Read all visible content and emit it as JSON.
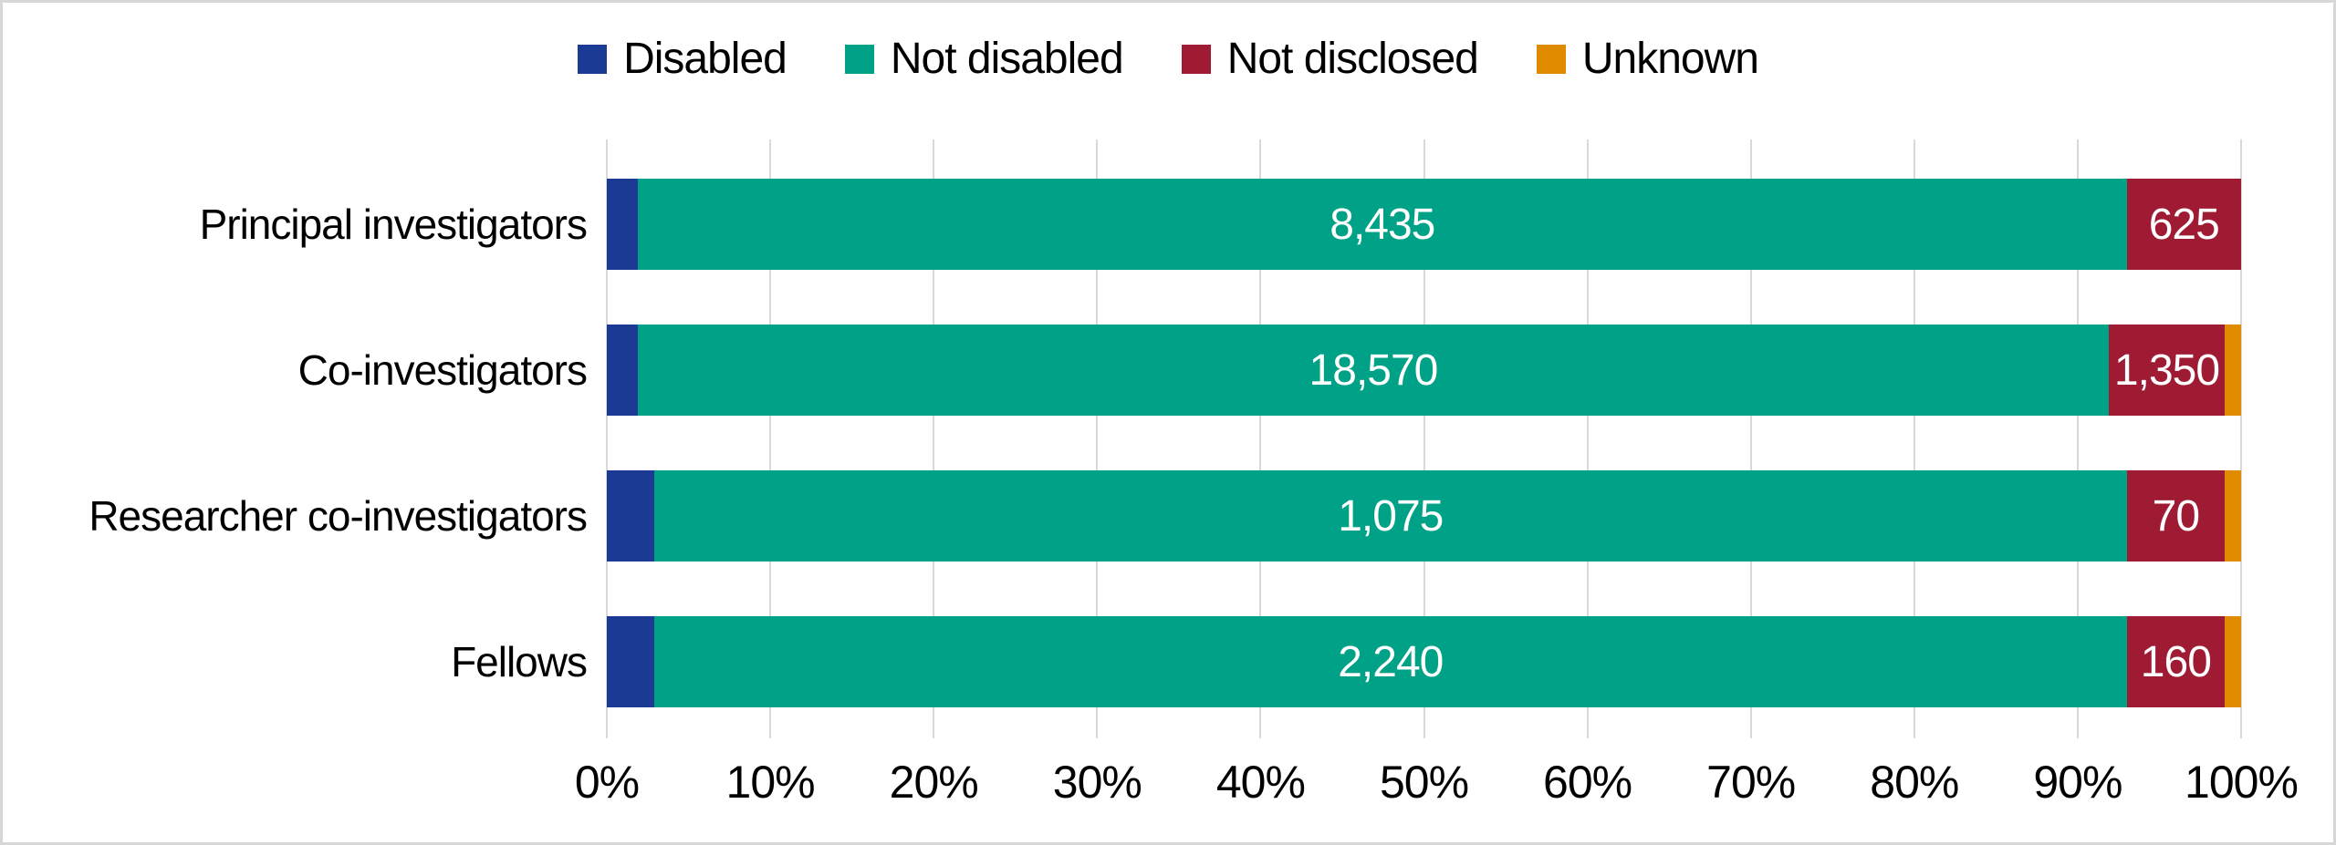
{
  "chart_data": {
    "type": "bar",
    "variant": "horizontal-100pct-stacked",
    "title": "",
    "categories": [
      "Principal investigators",
      "Co-investigators",
      "Researcher co-investigators",
      "Fellows"
    ],
    "series": [
      {
        "name": "Disabled",
        "color": "#1A3A94",
        "pct": [
          1.9,
          1.9,
          2.9,
          2.9
        ],
        "values": [
          null,
          null,
          null,
          null
        ],
        "labels": [
          "",
          "",
          "",
          ""
        ]
      },
      {
        "name": "Not disabled",
        "color": "#00A287",
        "pct": [
          91.1,
          90.0,
          90.1,
          90.1
        ],
        "values": [
          8435,
          18570,
          1075,
          2240
        ],
        "labels": [
          "8,435",
          "18,570",
          "1,075",
          "2,240"
        ]
      },
      {
        "name": "Not disclosed",
        "color": "#9E1B33",
        "pct": [
          7.0,
          7.1,
          6.0,
          6.0
        ],
        "values": [
          625,
          1350,
          70,
          160
        ],
        "labels": [
          "625",
          "1,350",
          "70",
          "160"
        ]
      },
      {
        "name": "Unknown",
        "color": "#E08A00",
        "pct": [
          0.0,
          1.0,
          1.0,
          1.0
        ],
        "values": [
          null,
          null,
          null,
          null
        ],
        "labels": [
          "",
          "",
          "",
          ""
        ]
      }
    ],
    "x_axis": {
      "tick_labels": [
        "0%",
        "10%",
        "20%",
        "30%",
        "40%",
        "50%",
        "60%",
        "70%",
        "80%",
        "90%",
        "100%"
      ],
      "range": [
        0,
        100
      ],
      "gridlines": true
    },
    "legend": {
      "position": "top",
      "entries": [
        "Disabled",
        "Not disabled",
        "Not disclosed",
        "Unknown"
      ]
    }
  },
  "colors": {
    "background": "#FFFFFF",
    "border": "#D7D7D7",
    "gridline": "#D9D9D9",
    "axis_text": "#000000",
    "data_label_text": "#FFFFFF"
  }
}
